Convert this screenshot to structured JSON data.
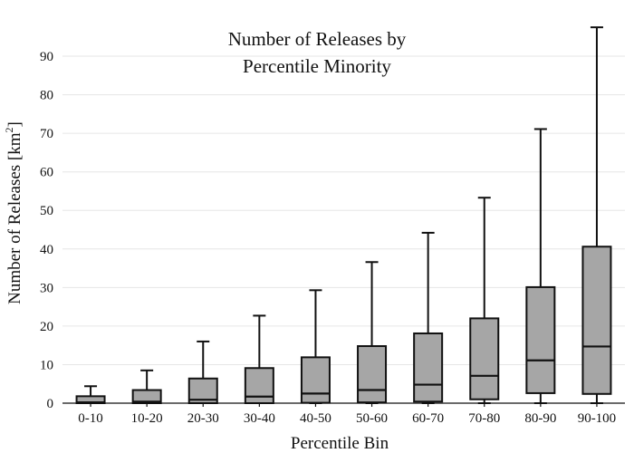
{
  "chart_data": {
    "type": "box",
    "title_lines": [
      "Number of Releases by",
      "Percentile Minority"
    ],
    "xlabel": "Percentile Bin",
    "ylabel_main": "Number of Releases  [km",
    "ylabel_sup": "2",
    "ylabel_close": "]",
    "ylim": [
      0,
      98
    ],
    "y_ticks": [
      0,
      10,
      20,
      30,
      40,
      50,
      60,
      70,
      80,
      90
    ],
    "grid": true,
    "categories": [
      "0-10",
      "10-20",
      "20-30",
      "30-40",
      "40-50",
      "50-60",
      "60-70",
      "70-80",
      "80-90",
      "90-100"
    ],
    "boxes": [
      {
        "category": "0-10",
        "whisker_low": 0,
        "q1": 0,
        "median": 0.2,
        "q3": 1.8,
        "whisker_high": 4.4
      },
      {
        "category": "10-20",
        "whisker_low": 0,
        "q1": 0,
        "median": 0.4,
        "q3": 3.4,
        "whisker_high": 8.5
      },
      {
        "category": "20-30",
        "whisker_low": 0,
        "q1": 0,
        "median": 0.9,
        "q3": 6.4,
        "whisker_high": 16
      },
      {
        "category": "30-40",
        "whisker_low": 0,
        "q1": 0,
        "median": 1.7,
        "q3": 9.1,
        "whisker_high": 22.7
      },
      {
        "category": "40-50",
        "whisker_low": 0,
        "q1": 0.1,
        "median": 2.5,
        "q3": 11.9,
        "whisker_high": 29.3
      },
      {
        "category": "50-60",
        "whisker_low": 0,
        "q1": 0.2,
        "median": 3.4,
        "q3": 14.8,
        "whisker_high": 36.6
      },
      {
        "category": "60-70",
        "whisker_low": 0,
        "q1": 0.4,
        "median": 4.8,
        "q3": 18.1,
        "whisker_high": 44.2
      },
      {
        "category": "70-80",
        "whisker_low": 0,
        "q1": 1.0,
        "median": 7.1,
        "q3": 22.0,
        "whisker_high": 53.3
      },
      {
        "category": "80-90",
        "whisker_low": 0,
        "q1": 2.6,
        "median": 11.1,
        "q3": 30.1,
        "whisker_high": 71.1
      },
      {
        "category": "90-100",
        "whisker_low": 0,
        "q1": 2.4,
        "median": 14.7,
        "q3": 40.6,
        "whisker_high": 97.5
      }
    ]
  }
}
